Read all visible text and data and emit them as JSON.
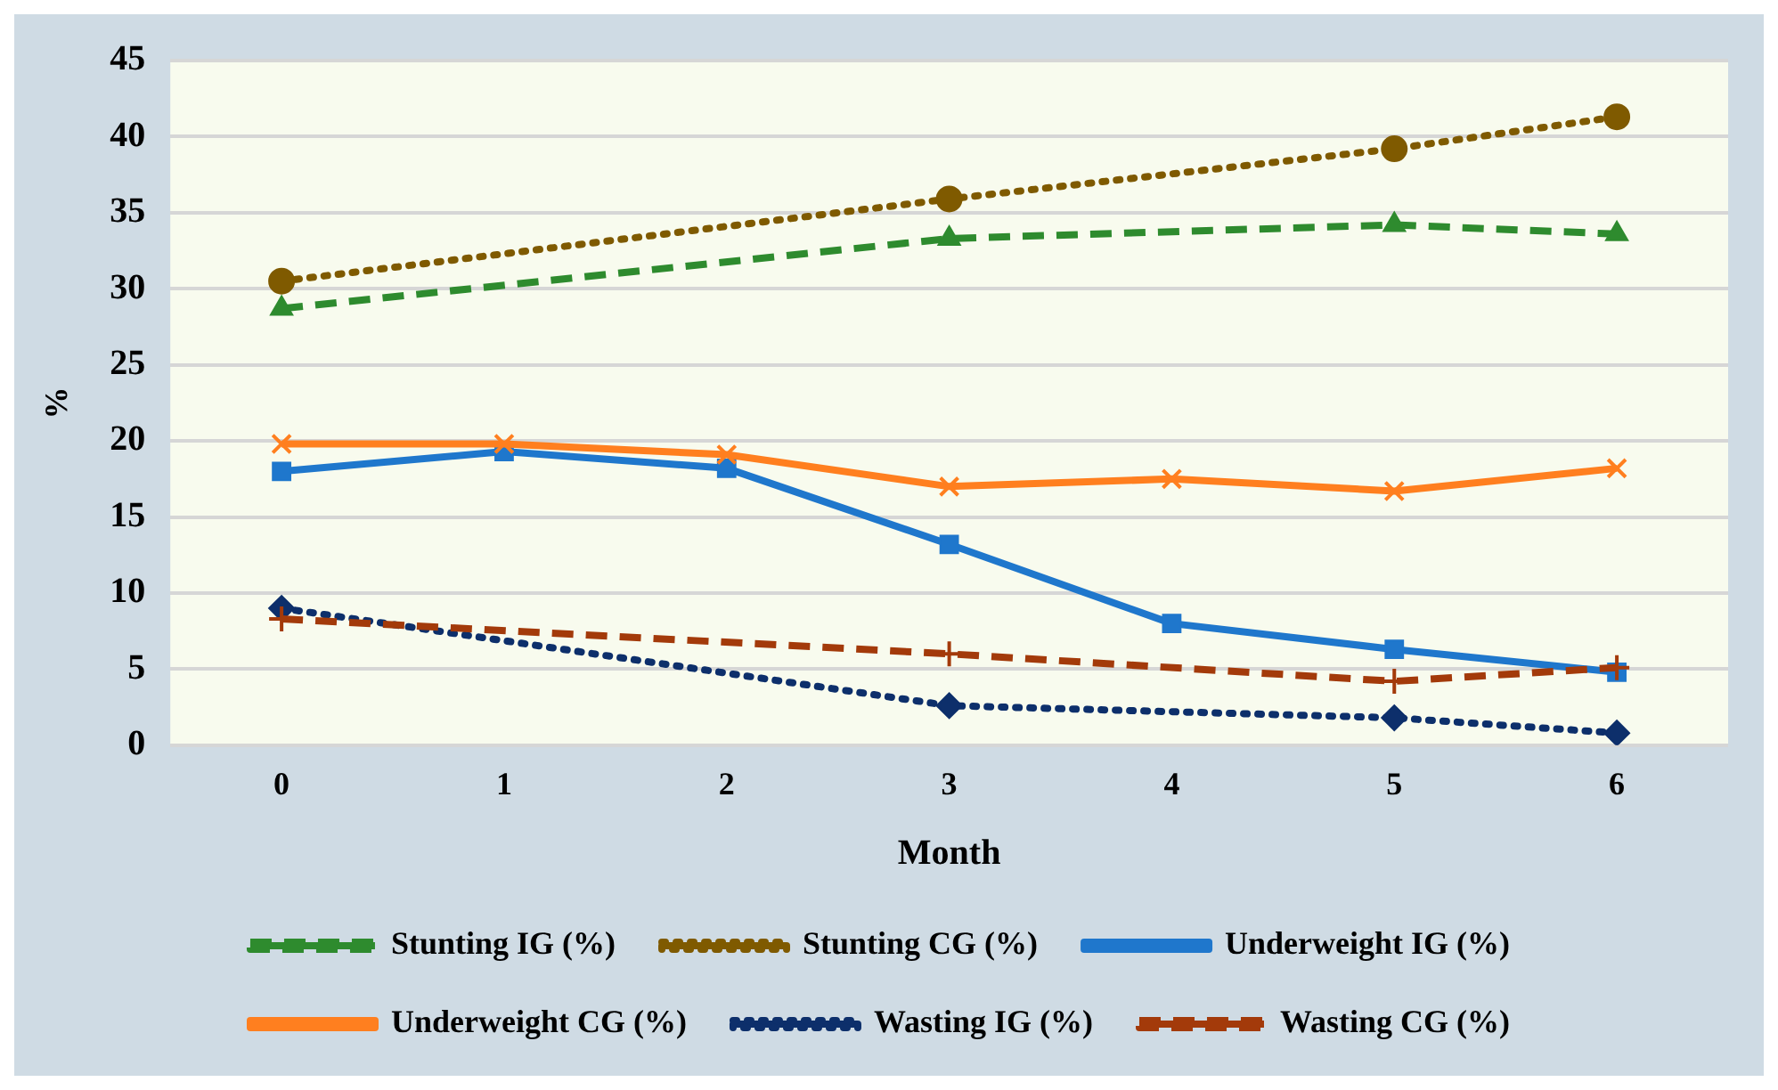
{
  "chart_data": {
    "type": "line",
    "xlabel": "Month",
    "ylabel": "%",
    "categories": [
      "0",
      "1",
      "2",
      "3",
      "4",
      "5",
      "6"
    ],
    "ylim": [
      0,
      45
    ],
    "yticks": [
      0,
      5,
      10,
      15,
      20,
      25,
      30,
      35,
      40,
      45
    ],
    "grid": "y",
    "legend": "bottom",
    "series": [
      {
        "name": "Stunting IG (%)",
        "color": "#2e8b2e",
        "marker": "triangle",
        "line_style": "dashed",
        "values": [
          28.7,
          null,
          null,
          33.3,
          null,
          34.2,
          33.6
        ]
      },
      {
        "name": "Stunting CG (%)",
        "color": "#7f5a00",
        "marker": "circle",
        "line_style": "dotted",
        "values": [
          30.5,
          null,
          null,
          35.9,
          null,
          39.2,
          41.3
        ]
      },
      {
        "name": "Underweight IG (%)",
        "color": "#1f77cc",
        "marker": "square",
        "line_style": "solid",
        "values": [
          18,
          19.3,
          18.2,
          13.2,
          8,
          6.3,
          4.8
        ]
      },
      {
        "name": "Underweight CG (%)",
        "color": "#ff7f1f",
        "marker": "cross",
        "line_style": "solid",
        "values": [
          19.8,
          19.8,
          19.1,
          17,
          17.5,
          16.7,
          18.2
        ]
      },
      {
        "name": "Wasting IG (%)",
        "color": "#0d2f6b",
        "marker": "diamond",
        "line_style": "dotted",
        "values": [
          9,
          null,
          null,
          2.6,
          null,
          1.8,
          0.8
        ]
      },
      {
        "name": "Wasting CG (%)",
        "color": "#a33a0a",
        "marker": "plus",
        "line_style": "dashed",
        "values": [
          8.3,
          null,
          null,
          6,
          null,
          4.2,
          5.1
        ]
      }
    ]
  }
}
